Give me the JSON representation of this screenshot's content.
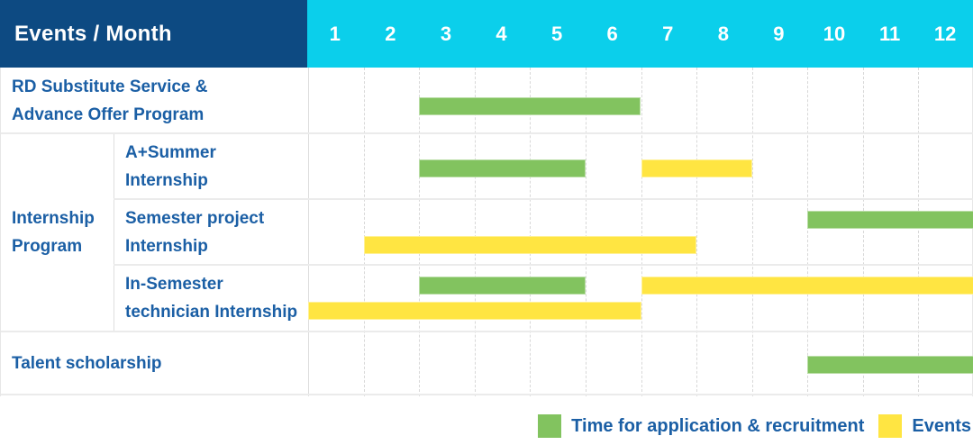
{
  "colors": {
    "header_bg": "#0D4A82",
    "month_band_bg": "#0BCFEB",
    "header_text": "#FFFFFF",
    "label_text": "#1B5FA5",
    "application": "#82C35F",
    "event": "#FFE542"
  },
  "legend": {
    "items": [
      {
        "kind": "application",
        "label": "Time for application & recruitment"
      },
      {
        "kind": "event",
        "label": "Events"
      }
    ]
  },
  "chart_data": {
    "type": "bar",
    "subtype": "gantt-monthly-timeline",
    "title": "Events / Month",
    "x": {
      "label": "Month",
      "ticks": [
        "1",
        "2",
        "3",
        "4",
        "5",
        "6",
        "7",
        "8",
        "9",
        "10",
        "11",
        "12"
      ],
      "range": [
        1,
        12
      ]
    },
    "legend": [
      "Time for application & recruitment",
      "Events"
    ],
    "legend_position": "bottom-right",
    "grid": "dashed-vertical-month-lines",
    "rows": [
      {
        "key": "rd_substitute",
        "category": "RD Substitute Service & Advance Offer Program",
        "label": "RD Substitute Service &\nAdvance Offer Program",
        "group": null,
        "bars": [
          {
            "series": "Time for application & recruitment",
            "kind": "application",
            "start_month": 3,
            "end_month": 6,
            "lane": "mid"
          }
        ]
      },
      {
        "key": "a_plus_summer",
        "category": "A+Summer Internship",
        "label": "A+Summer\nInternship",
        "group": "Internship Program",
        "bars": [
          {
            "series": "Time for application & recruitment",
            "kind": "application",
            "start_month": 3,
            "end_month": 5,
            "lane": "mid"
          },
          {
            "series": "Events",
            "kind": "event",
            "start_month": 7,
            "end_month": 8,
            "lane": "mid"
          }
        ]
      },
      {
        "key": "semester_project",
        "category": "Semester project Internship",
        "label": "Semester project\nInternship",
        "group": "Internship Program",
        "bars": [
          {
            "series": "Time for application & recruitment",
            "kind": "application",
            "start_month": 10,
            "end_month": 12,
            "lane": "top"
          },
          {
            "series": "Events",
            "kind": "event",
            "start_month": 2,
            "end_month": 7,
            "lane": "bottom"
          }
        ]
      },
      {
        "key": "in_semester_technician",
        "category": "In-Semester technician Internship",
        "label": "In-Semester\ntechnician Internship",
        "group": "Internship Program",
        "bars": [
          {
            "series": "Time for application & recruitment",
            "kind": "application",
            "start_month": 3,
            "end_month": 5,
            "lane": "top"
          },
          {
            "series": "Events",
            "kind": "event",
            "start_month": 7,
            "end_month": 12,
            "lane": "top"
          },
          {
            "series": "Events",
            "kind": "event",
            "start_month": 1,
            "end_month": 6,
            "lane": "bottom"
          }
        ]
      },
      {
        "key": "talent_scholarship",
        "category": "Talent scholarship",
        "label": "Talent scholarship",
        "group": null,
        "bars": [
          {
            "series": "Time for application & recruitment",
            "kind": "application",
            "start_month": 10,
            "end_month": 12,
            "lane": "mid"
          }
        ]
      }
    ],
    "group_labels": {
      "Internship Program": "Internship\nProgram"
    }
  }
}
